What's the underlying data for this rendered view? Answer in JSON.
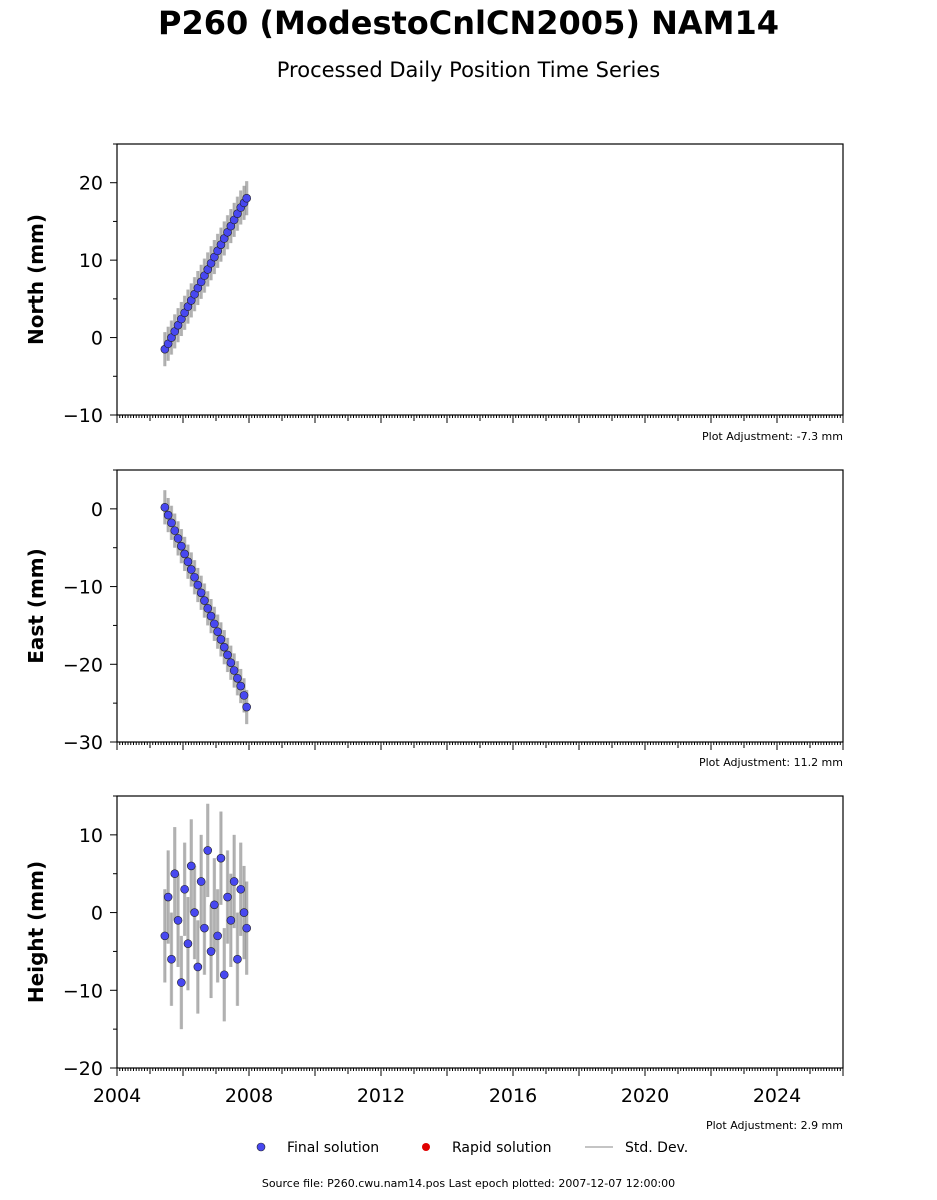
{
  "header": {
    "title": "P260 (ModestoCnlCN2005) NAM14",
    "subtitle": "Processed Daily Position Time Series"
  },
  "footer": {
    "source": "Source file: P260.cwu.nam14.pos  Last epoch plotted: 2007-12-07 12:00:00"
  },
  "legend": {
    "final": "Final solution",
    "rapid": "Rapid solution",
    "stddev": "Std. Dev."
  },
  "colors": {
    "final": "#4848f0",
    "rapid": "#e00000",
    "stddev": "#b0b0b0"
  },
  "chart_data": [
    {
      "type": "scatter",
      "ylabel": "North (mm)",
      "ylim": [
        -10,
        25
      ],
      "yticks": [
        -10,
        0,
        10,
        20
      ],
      "xlim": [
        2004.0,
        2026.0
      ],
      "adjustment": "Plot Adjustment: -7.3 mm",
      "series": [
        {
          "name": "Final solution",
          "x": [
            2005.45,
            2005.55,
            2005.65,
            2005.75,
            2005.85,
            2005.95,
            2006.05,
            2006.15,
            2006.25,
            2006.35,
            2006.45,
            2006.55,
            2006.65,
            2006.75,
            2006.85,
            2006.95,
            2007.05,
            2007.15,
            2007.25,
            2007.35,
            2007.45,
            2007.55,
            2007.65,
            2007.75,
            2007.85,
            2007.93
          ],
          "y": [
            -1.5,
            -0.8,
            0.0,
            0.8,
            1.6,
            2.4,
            3.2,
            4.0,
            4.8,
            5.6,
            6.4,
            7.2,
            8.0,
            8.8,
            9.6,
            10.4,
            11.2,
            12.0,
            12.8,
            13.6,
            14.4,
            15.2,
            16.0,
            16.8,
            17.4,
            18.0
          ]
        }
      ]
    },
    {
      "type": "scatter",
      "ylabel": "East (mm)",
      "ylim": [
        -30,
        5
      ],
      "yticks": [
        -30,
        -20,
        -10,
        0
      ],
      "xlim": [
        2004.0,
        2026.0
      ],
      "adjustment": "Plot Adjustment: 11.2 mm",
      "series": [
        {
          "name": "Final solution",
          "x": [
            2005.45,
            2005.55,
            2005.65,
            2005.75,
            2005.85,
            2005.95,
            2006.05,
            2006.15,
            2006.25,
            2006.35,
            2006.45,
            2006.55,
            2006.65,
            2006.75,
            2006.85,
            2006.95,
            2007.05,
            2007.15,
            2007.25,
            2007.35,
            2007.45,
            2007.55,
            2007.65,
            2007.75,
            2007.85,
            2007.93
          ],
          "y": [
            0.2,
            -0.8,
            -1.8,
            -2.8,
            -3.8,
            -4.8,
            -5.8,
            -6.8,
            -7.8,
            -8.8,
            -9.8,
            -10.8,
            -11.8,
            -12.8,
            -13.8,
            -14.8,
            -15.8,
            -16.8,
            -17.8,
            -18.8,
            -19.8,
            -20.8,
            -21.8,
            -22.8,
            -24.0,
            -25.5
          ]
        }
      ]
    },
    {
      "type": "scatter",
      "ylabel": "Height (mm)",
      "ylim": [
        -20,
        15
      ],
      "yticks": [
        -20,
        -10,
        0,
        10
      ],
      "xlim": [
        2004.0,
        2026.0
      ],
      "xticks": [
        2004,
        2008,
        2012,
        2016,
        2020,
        2024
      ],
      "adjustment": "Plot Adjustment: 2.9 mm",
      "series": [
        {
          "name": "Final solution",
          "x": [
            2005.45,
            2005.55,
            2005.65,
            2005.75,
            2005.85,
            2005.95,
            2006.05,
            2006.15,
            2006.25,
            2006.35,
            2006.45,
            2006.55,
            2006.65,
            2006.75,
            2006.85,
            2006.95,
            2007.05,
            2007.15,
            2007.25,
            2007.35,
            2007.45,
            2007.55,
            2007.65,
            2007.75,
            2007.85,
            2007.93
          ],
          "y": [
            -3,
            2,
            -6,
            5,
            -1,
            -9,
            3,
            -4,
            6,
            0,
            -7,
            4,
            -2,
            8,
            -5,
            1,
            -3,
            7,
            -8,
            2,
            -1,
            4,
            -6,
            3,
            0,
            -2
          ]
        }
      ]
    }
  ]
}
